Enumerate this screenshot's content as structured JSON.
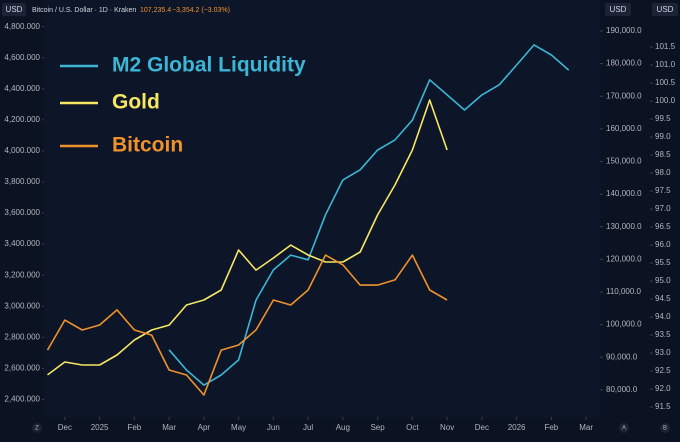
{
  "header": {
    "left_unit": "USD",
    "symbol": "Bitcoin / U.S. Dollar · 1D · Kraken",
    "price": "107,235.4",
    "change": "−3,354.2 (−3.03%)",
    "right_units": [
      "USD",
      "USD"
    ],
    "bottom_buttons": [
      "Z",
      "A",
      "B"
    ]
  },
  "chart_data": {
    "type": "line",
    "x": [
      0.5,
      1,
      1.5,
      2,
      2.5,
      3,
      3.5,
      4,
      4.5,
      5,
      5.5,
      6,
      6.5,
      7,
      7.5,
      8,
      8.5,
      9,
      9.5,
      10,
      10.5,
      11,
      11.5,
      12,
      12.5,
      13,
      13.5,
      14,
      14.5,
      15,
      15.5
    ],
    "xlim": [
      0.4,
      16.4
    ],
    "xticks": [
      {
        "value": 1,
        "label": "Dec"
      },
      {
        "value": 2,
        "label": "2025"
      },
      {
        "value": 3,
        "label": "Feb"
      },
      {
        "value": 4,
        "label": "Mar"
      },
      {
        "value": 5,
        "label": "Apr"
      },
      {
        "value": 6,
        "label": "May"
      },
      {
        "value": 7,
        "label": "Jun"
      },
      {
        "value": 8,
        "label": "Jul"
      },
      {
        "value": 9,
        "label": "Aug"
      },
      {
        "value": 10,
        "label": "Sep"
      },
      {
        "value": 11,
        "label": "Oct"
      },
      {
        "value": 12,
        "label": "Nov"
      },
      {
        "value": 13,
        "label": "Dec"
      },
      {
        "value": 14,
        "label": "2026"
      },
      {
        "value": 15,
        "label": "Feb"
      },
      {
        "value": 16,
        "label": "Mar"
      }
    ],
    "ylim": [
      2300,
      4875
    ],
    "yticks": [
      {
        "value": 2400,
        "label": "2,400.000"
      },
      {
        "value": 2600,
        "label": "2,600.000"
      },
      {
        "value": 2800,
        "label": "2,800.000"
      },
      {
        "value": 3000,
        "label": "3,000.000"
      },
      {
        "value": 3200,
        "label": "3,200.000"
      },
      {
        "value": 3400,
        "label": "3,400.000"
      },
      {
        "value": 3600,
        "label": "3,600.000"
      },
      {
        "value": 3800,
        "label": "3,800.000"
      },
      {
        "value": 4000,
        "label": "4,000.000"
      },
      {
        "value": 4200,
        "label": "4,200.000"
      },
      {
        "value": 4400,
        "label": "4,400.000"
      },
      {
        "value": 4600,
        "label": "4,600.000"
      },
      {
        "value": 4800,
        "label": "4,800.000"
      }
    ],
    "y2lim": [
      72300,
      194900
    ],
    "y2ticks": [
      {
        "value": 80000,
        "label": "80,000.0"
      },
      {
        "value": 90000,
        "label": "90,000.0"
      },
      {
        "value": 100000,
        "label": "100,000.0"
      },
      {
        "value": 110000,
        "label": "110,000.0"
      },
      {
        "value": 120000,
        "label": "120,000.0"
      },
      {
        "value": 130000,
        "label": "130,000.0"
      },
      {
        "value": 140000,
        "label": "140,000.0"
      },
      {
        "value": 150000,
        "label": "150,000.0"
      },
      {
        "value": 160000,
        "label": "160,000.0"
      },
      {
        "value": 170000,
        "label": "170,000.0"
      },
      {
        "value": 180000,
        "label": "180,000.0"
      },
      {
        "value": 190000,
        "label": "190,000.0"
      }
    ],
    "y3lim": [
      91.28,
      102.39
    ],
    "y3ticks": [
      91.5,
      {
        "value": 92,
        "label": "92.0"
      },
      92.5,
      {
        "value": 93,
        "label": "93.0"
      },
      93.5,
      {
        "value": 94,
        "label": "94.0"
      },
      94.5,
      {
        "value": 95,
        "label": "95.0"
      },
      95.5,
      {
        "value": 96,
        "label": "96.0"
      },
      96.5,
      {
        "value": 97,
        "label": "97.0"
      },
      97.5,
      {
        "value": 98,
        "label": "98.0"
      },
      98.5,
      {
        "value": 99,
        "label": "99.0"
      },
      99.5,
      {
        "value": 100,
        "label": "100.0"
      },
      100.5,
      {
        "value": 101,
        "label": "101.0"
      },
      101.5
    ],
    "grid": false,
    "series": [
      {
        "name": "M2 Global Liquidity",
        "color": "#3bb6d4",
        "axis": "y3",
        "values": [
          null,
          null,
          null,
          null,
          null,
          null,
          null,
          93.09,
          92.53,
          92.11,
          92.39,
          92.81,
          94.47,
          95.31,
          95.72,
          95.59,
          96.84,
          97.81,
          98.09,
          98.64,
          98.92,
          99.47,
          100.59,
          100.17,
          99.75,
          100.17,
          100.45,
          101.0,
          101.56,
          101.28,
          100.86
        ]
      },
      {
        "name": "Gold",
        "color": "#f5e663",
        "axis": "y",
        "values": [
          2558,
          2641,
          2622,
          2622,
          2686,
          2783,
          2847,
          2879,
          3008,
          3040,
          3105,
          3362,
          3233,
          3311,
          3394,
          3330,
          3285,
          3285,
          3349,
          3588,
          3781,
          4006,
          4328,
          4006,
          null,
          null,
          null,
          null,
          null,
          null,
          null
        ]
      },
      {
        "name": "Bitcoin",
        "color": "#f0922c",
        "axis": "y2",
        "values": [
          92200,
          101400,
          98350,
          99900,
          104500,
          98350,
          96800,
          86100,
          84560,
          78430,
          92200,
          93750,
          98350,
          107550,
          106000,
          110600,
          121300,
          118300,
          112100,
          112100,
          113700,
          121300,
          110600,
          107550,
          null,
          null,
          null,
          null,
          null,
          null,
          null
        ]
      }
    ]
  }
}
